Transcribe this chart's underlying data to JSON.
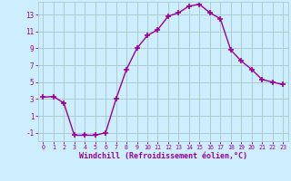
{
  "x": [
    0,
    1,
    2,
    3,
    4,
    5,
    6,
    7,
    8,
    9,
    10,
    11,
    12,
    13,
    14,
    15,
    16,
    17,
    18,
    19,
    20,
    21,
    22,
    23
  ],
  "y": [
    3.2,
    3.3,
    2.5,
    -1.3,
    -1.3,
    -1.3,
    -1.0,
    3.0,
    6.5,
    9.0,
    10.5,
    11.2,
    12.8,
    13.2,
    14.0,
    14.2,
    13.2,
    12.5,
    8.8,
    7.5,
    6.5,
    5.3,
    5.0,
    4.7
  ],
  "line_color": "#990099",
  "marker": "+",
  "marker_size": 4,
  "marker_lw": 1.2,
  "bg_color": "#cceeff",
  "grid_color": "#aacccc",
  "xlabel": "Windchill (Refroidissement éolien,°C)",
  "xlabel_color": "#990099",
  "tick_color": "#990099",
  "ylim": [
    -2,
    14.5
  ],
  "xlim": [
    -0.5,
    23.5
  ],
  "yticks": [
    -1,
    1,
    3,
    5,
    7,
    9,
    11,
    13
  ],
  "xticks": [
    0,
    1,
    2,
    3,
    4,
    5,
    6,
    7,
    8,
    9,
    10,
    11,
    12,
    13,
    14,
    15,
    16,
    17,
    18,
    19,
    20,
    21,
    22,
    23
  ]
}
